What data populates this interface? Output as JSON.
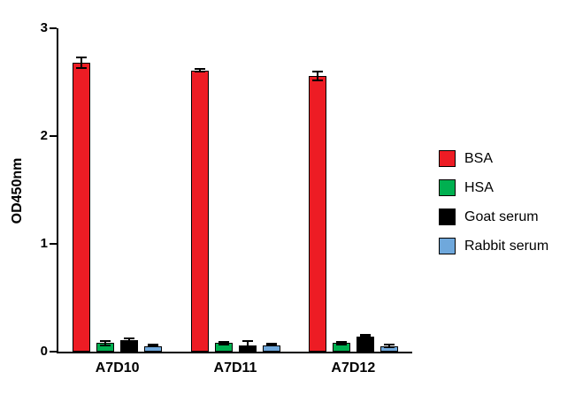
{
  "chart_data": {
    "type": "bar",
    "title": "",
    "xlabel": "",
    "ylabel": "OD450nm",
    "categories": [
      "A7D10",
      "A7D11",
      "A7D12"
    ],
    "series": [
      {
        "name": "BSA",
        "color": "#ED1C24",
        "values": [
          2.68,
          2.61,
          2.56
        ],
        "errors": [
          0.06,
          0.02,
          0.05
        ]
      },
      {
        "name": "HSA",
        "color": "#00B050",
        "values": [
          0.08,
          0.08,
          0.08
        ],
        "errors": [
          0.03,
          0.02,
          0.02
        ]
      },
      {
        "name": "Goat serum",
        "color": "#000000",
        "values": [
          0.11,
          0.06,
          0.14
        ],
        "errors": [
          0.02,
          0.05,
          0.01
        ]
      },
      {
        "name": "Rabbit serum",
        "color": "#6FA8DC",
        "values": [
          0.05,
          0.06,
          0.05
        ],
        "errors": [
          0.01,
          0.01,
          0.02
        ]
      }
    ],
    "ylim": [
      0,
      3
    ],
    "yticks": [
      0,
      1,
      2,
      3
    ],
    "grid": false,
    "legend_position": "right"
  }
}
